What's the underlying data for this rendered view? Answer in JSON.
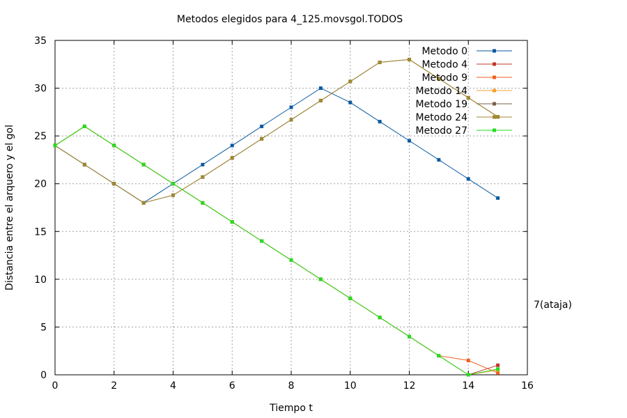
{
  "chart_data": {
    "type": "line",
    "title": "Metodos elegidos para 4_125.movsgol.TODOS",
    "xlabel": "Tiempo t",
    "ylabel": "Distancia entre el arquero y el gol",
    "xlim": [
      0,
      16
    ],
    "ylim": [
      0,
      35
    ],
    "xticks": [
      0,
      2,
      4,
      6,
      8,
      10,
      12,
      14,
      16
    ],
    "yticks": [
      0,
      5,
      10,
      15,
      20,
      25,
      30,
      35
    ],
    "grid": true,
    "legend_position": "top-right",
    "annotation": "7(ataja)",
    "series": [
      {
        "name": "Metodo 0",
        "color": "#0a5aa0",
        "x": [
          0,
          1,
          2,
          3,
          4,
          5,
          6,
          7,
          8,
          9,
          10,
          11,
          12,
          13,
          14,
          15
        ],
        "y": [
          24,
          22,
          20,
          18,
          20,
          22,
          24,
          26,
          28,
          30,
          28.5,
          26.5,
          24.5,
          22.5,
          20.5,
          18.5
        ]
      },
      {
        "name": "Metodo 4",
        "color": "#c0392b",
        "x": [
          0,
          1,
          2,
          3,
          4,
          5,
          6,
          7,
          8,
          9,
          10,
          11,
          12,
          13,
          14,
          15
        ],
        "y": [
          24,
          26,
          24,
          22,
          20,
          18,
          16,
          14,
          12,
          10,
          8,
          6,
          4,
          2,
          0,
          1
        ]
      },
      {
        "name": "Metodo 9",
        "color": "#f06020",
        "x": [
          0,
          1,
          2,
          3,
          4,
          5,
          6,
          7,
          8,
          9,
          10,
          11,
          12,
          13,
          14,
          15
        ],
        "y": [
          24,
          26,
          24,
          22,
          20,
          18,
          16,
          14,
          12,
          10,
          8,
          6,
          4,
          2,
          1.5,
          0.2
        ]
      },
      {
        "name": "Metodo 14",
        "color": "#f5a030",
        "x": [
          0,
          1,
          2,
          3,
          4,
          5,
          6,
          7,
          8,
          9,
          10,
          11,
          12,
          13,
          14,
          15
        ],
        "y": [
          24,
          26,
          24,
          22,
          20,
          18,
          16,
          14,
          12,
          10,
          8,
          6,
          4,
          2,
          0,
          0.5
        ]
      },
      {
        "name": "Metodo 19",
        "color": "#7a6048",
        "x": [
          0,
          1,
          2,
          3,
          4,
          5,
          6,
          7,
          8,
          9,
          10,
          11,
          12,
          13,
          14,
          15
        ],
        "y": [
          24,
          22,
          20,
          18,
          18.8,
          20.7,
          22.7,
          24.7,
          26.7,
          28.7,
          30.7,
          32.7,
          33,
          31,
          29,
          27
        ]
      },
      {
        "name": "Metodo 24",
        "color": "#a08830",
        "x": [
          0,
          1,
          2,
          3,
          4,
          5,
          6,
          7,
          8,
          9,
          10,
          11,
          12,
          13,
          14,
          15
        ],
        "y": [
          24,
          22,
          20,
          18,
          18.8,
          20.7,
          22.7,
          24.7,
          26.7,
          28.7,
          30.7,
          32.7,
          33,
          31,
          29,
          27
        ]
      },
      {
        "name": "Metodo 27",
        "color": "#22dd22",
        "x": [
          0,
          1,
          2,
          3,
          4,
          5,
          6,
          7,
          8,
          9,
          10,
          11,
          12,
          13,
          14,
          15
        ],
        "y": [
          24,
          26,
          24,
          22,
          20,
          18,
          16,
          14,
          12,
          10,
          8,
          6,
          4,
          2,
          0,
          0.6
        ]
      }
    ]
  }
}
